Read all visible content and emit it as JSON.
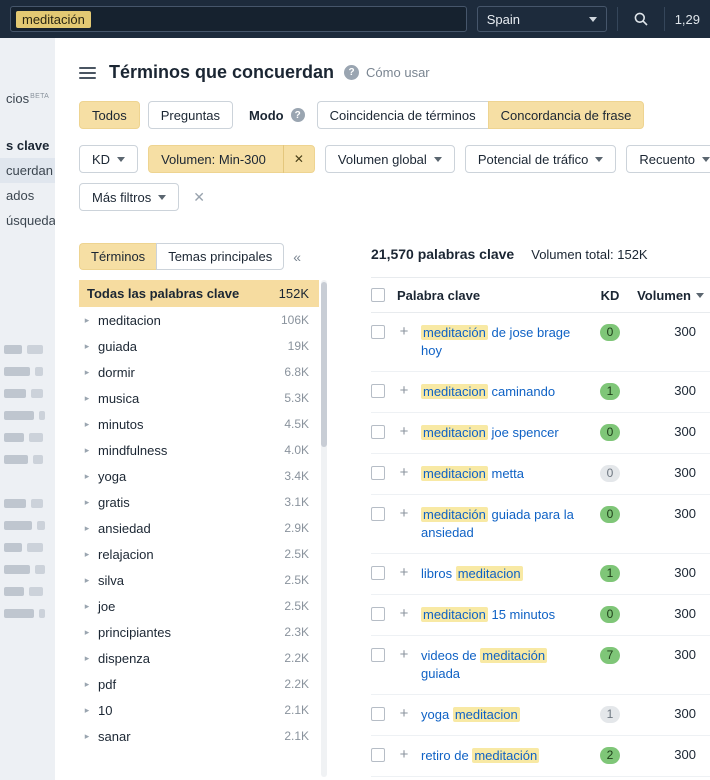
{
  "colors": {
    "topbar_bg": "#1d2b3c",
    "accent_tan": "#f6dfa4",
    "highlight_yellow": "#f8e9a4",
    "link_blue": "#0f62c5",
    "kd_green": "#7fc678"
  },
  "topbar": {
    "query": "meditación",
    "country": "Spain",
    "credits": "1,29"
  },
  "sidebar": {
    "items": [
      {
        "label": "cios",
        "badge": "BETA"
      },
      {
        "label": "s clave"
      },
      {
        "label": "cuerdan"
      },
      {
        "label": "ados"
      },
      {
        "label": "úsqueda"
      }
    ]
  },
  "page": {
    "title": "Términos que concuerdan",
    "how_to": "Cómo usar"
  },
  "filters": {
    "scope_tabs": [
      {
        "label": "Todos"
      },
      {
        "label": "Preguntas"
      }
    ],
    "mode_label": "Modo",
    "match_modes": [
      {
        "label": "Coincidencia de términos"
      },
      {
        "label": "Concordancia de frase"
      }
    ],
    "pills": [
      {
        "label": "KD"
      },
      {
        "label": "Volumen: Min-300",
        "remove_icon": "✕"
      },
      {
        "label": "Volumen global"
      },
      {
        "label": "Potencial de tráfico"
      },
      {
        "label": "Recuento"
      }
    ],
    "more_filters_label": "Más filtros",
    "clear_icon": "✕"
  },
  "terms_panel": {
    "tabs": [
      {
        "label": "Términos"
      },
      {
        "label": "Temas principales"
      }
    ],
    "collapse_icon": "«",
    "all_label": "Todas las palabras clave",
    "all_count": "152K",
    "items": [
      {
        "label": "meditacion",
        "count": "106K"
      },
      {
        "label": "guiada",
        "count": "19K"
      },
      {
        "label": "dormir",
        "count": "6.8K"
      },
      {
        "label": "musica",
        "count": "5.3K"
      },
      {
        "label": "minutos",
        "count": "4.5K"
      },
      {
        "label": "mindfulness",
        "count": "4.0K"
      },
      {
        "label": "yoga",
        "count": "3.4K"
      },
      {
        "label": "gratis",
        "count": "3.1K"
      },
      {
        "label": "ansiedad",
        "count": "2.9K"
      },
      {
        "label": "relajacion",
        "count": "2.5K"
      },
      {
        "label": "silva",
        "count": "2.5K"
      },
      {
        "label": "joe",
        "count": "2.5K"
      },
      {
        "label": "principiantes",
        "count": "2.3K"
      },
      {
        "label": "dispenza",
        "count": "2.2K"
      },
      {
        "label": "pdf",
        "count": "2.2K"
      },
      {
        "label": "10",
        "count": "2.1K"
      },
      {
        "label": "sanar",
        "count": "2.1K"
      }
    ]
  },
  "results": {
    "count_label": "21,570 palabras clave",
    "volume_total_label": "Volumen total: 152K",
    "columns": {
      "keyword": "Palabra clave",
      "kd": "KD",
      "volume": "Volumen"
    },
    "rows": [
      {
        "pre": "",
        "hl": "meditación",
        "post": " de jose brage hoy",
        "kd": "0",
        "kd_variant": "green",
        "volume": "300"
      },
      {
        "pre": "",
        "hl": "meditacion",
        "post": " caminando",
        "kd": "1",
        "kd_variant": "green",
        "volume": "300"
      },
      {
        "pre": "",
        "hl": "meditacion",
        "post": " joe spencer",
        "kd": "0",
        "kd_variant": "green",
        "volume": "300"
      },
      {
        "pre": "",
        "hl": "meditacion",
        "post": " metta",
        "kd": "0",
        "kd_variant": "gray",
        "volume": "300"
      },
      {
        "pre": "",
        "hl": "meditación",
        "post": " guiada para la ansiedad",
        "kd": "0",
        "kd_variant": "green",
        "volume": "300"
      },
      {
        "pre": "libros ",
        "hl": "meditacion",
        "post": "",
        "kd": "1",
        "kd_variant": "green",
        "volume": "300"
      },
      {
        "pre": "",
        "hl": "meditacion",
        "post": " 15 minutos",
        "kd": "0",
        "kd_variant": "green",
        "volume": "300"
      },
      {
        "pre": "videos de ",
        "hl": "meditación",
        "post": " guiada",
        "kd": "7",
        "kd_variant": "green",
        "volume": "300"
      },
      {
        "pre": "yoga ",
        "hl": "meditacion",
        "post": "",
        "kd": "1",
        "kd_variant": "gray",
        "volume": "300"
      },
      {
        "pre": "retiro de ",
        "hl": "meditación",
        "post": "",
        "kd": "2",
        "kd_variant": "green",
        "volume": "300"
      }
    ]
  }
}
